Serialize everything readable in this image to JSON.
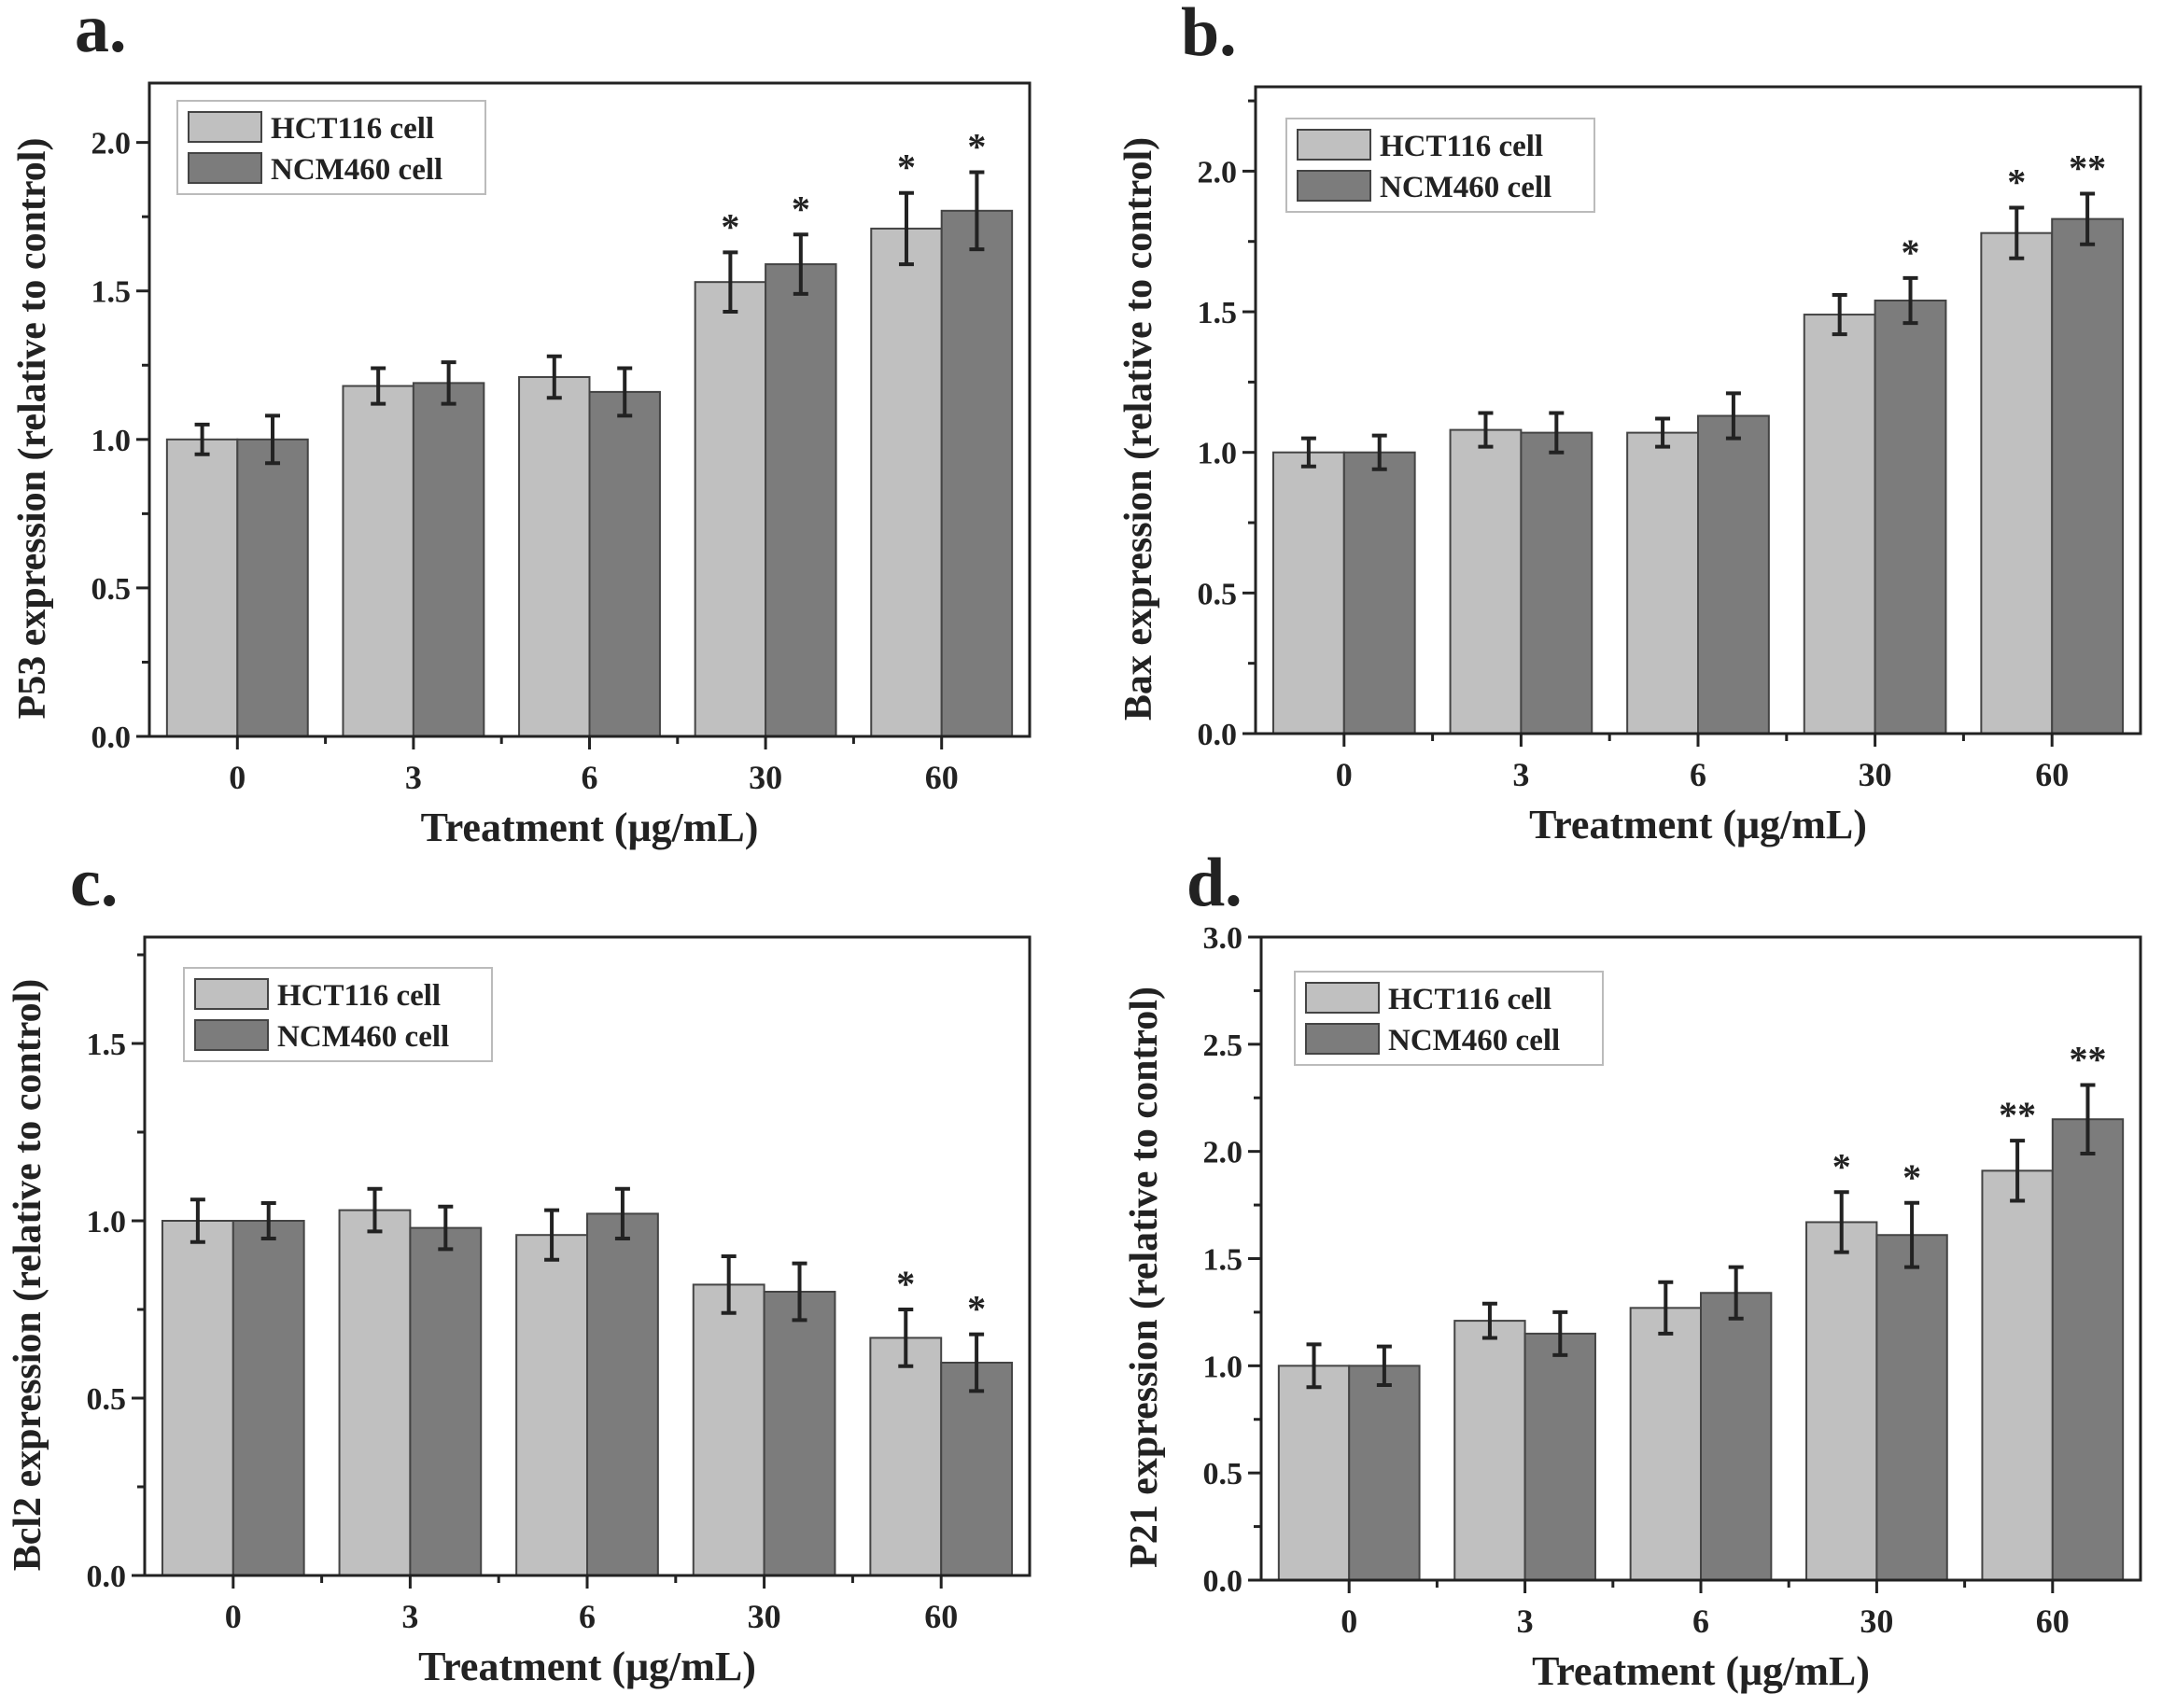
{
  "chart_data": [
    {
      "type": "bar",
      "panel_label": "a.",
      "ylabel": "P53 expression (relative to control)",
      "xlabel": "Treatment (μg/mL)",
      "categories": [
        "0",
        "3",
        "6",
        "30",
        "60"
      ],
      "ylim": [
        0,
        2.2
      ],
      "yticks": [
        "0.0",
        "0.5",
        "1.0",
        "1.5",
        "2.0"
      ],
      "legend_position": "top-left",
      "series": [
        {
          "name": "HCT116 cell",
          "color": "#c0c0c0",
          "values": [
            1.0,
            1.18,
            1.21,
            1.53,
            1.71
          ],
          "errors": [
            0.05,
            0.06,
            0.07,
            0.1,
            0.12
          ],
          "significance": [
            "",
            "",
            "",
            "*",
            "*"
          ]
        },
        {
          "name": "NCM460 cell",
          "color": "#7c7c7c",
          "values": [
            1.0,
            1.19,
            1.16,
            1.59,
            1.77
          ],
          "errors": [
            0.08,
            0.07,
            0.08,
            0.1,
            0.13
          ],
          "significance": [
            "",
            "",
            "",
            "*",
            "*"
          ]
        }
      ]
    },
    {
      "type": "bar",
      "panel_label": "b.",
      "ylabel": "Bax expression (relative to control)",
      "xlabel": "Treatment (μg/mL)",
      "categories": [
        "0",
        "3",
        "6",
        "30",
        "60"
      ],
      "ylim": [
        0,
        2.3
      ],
      "yticks": [
        "0.0",
        "0.5",
        "1.0",
        "1.5",
        "2.0"
      ],
      "legend_position": "top-left",
      "series": [
        {
          "name": "HCT116 cell",
          "color": "#c0c0c0",
          "values": [
            1.0,
            1.08,
            1.07,
            1.49,
            1.78
          ],
          "errors": [
            0.05,
            0.06,
            0.05,
            0.07,
            0.09
          ],
          "significance": [
            "",
            "",
            "",
            "",
            "*"
          ]
        },
        {
          "name": "NCM460 cell",
          "color": "#7c7c7c",
          "values": [
            1.0,
            1.07,
            1.13,
            1.54,
            1.83
          ],
          "errors": [
            0.06,
            0.07,
            0.08,
            0.08,
            0.09
          ],
          "significance": [
            "",
            "",
            "",
            "*",
            "**"
          ]
        }
      ]
    },
    {
      "type": "bar",
      "panel_label": "c.",
      "ylabel": "Bcl2 expression (relative to control)",
      "xlabel": "Treatment (μg/mL)",
      "categories": [
        "0",
        "3",
        "6",
        "30",
        "60"
      ],
      "ylim": [
        0,
        1.8
      ],
      "yticks": [
        "0.0",
        "0.5",
        "1.0",
        "1.5"
      ],
      "legend_position": "top-left",
      "series": [
        {
          "name": "HCT116 cell",
          "color": "#c0c0c0",
          "values": [
            1.0,
            1.03,
            0.96,
            0.82,
            0.67
          ],
          "errors": [
            0.06,
            0.06,
            0.07,
            0.08,
            0.08
          ],
          "significance": [
            "",
            "",
            "",
            "",
            "*"
          ]
        },
        {
          "name": "NCM460 cell",
          "color": "#7c7c7c",
          "values": [
            1.0,
            0.98,
            1.02,
            0.8,
            0.6
          ],
          "errors": [
            0.05,
            0.06,
            0.07,
            0.08,
            0.08
          ],
          "significance": [
            "",
            "",
            "",
            "",
            "*"
          ]
        }
      ]
    },
    {
      "type": "bar",
      "panel_label": "d.",
      "ylabel": "P21 expression (relative to control)",
      "xlabel": "Treatment (μg/mL)",
      "categories": [
        "0",
        "3",
        "6",
        "30",
        "60"
      ],
      "ylim": [
        0,
        3.0
      ],
      "yticks": [
        "0.0",
        "0.5",
        "1.0",
        "1.5",
        "2.0",
        "2.5",
        "3.0"
      ],
      "legend_position": "top-left",
      "series": [
        {
          "name": "HCT116 cell",
          "color": "#c0c0c0",
          "values": [
            1.0,
            1.21,
            1.27,
            1.67,
            1.91
          ],
          "errors": [
            0.1,
            0.08,
            0.12,
            0.14,
            0.14
          ],
          "significance": [
            "",
            "",
            "",
            "*",
            "**"
          ]
        },
        {
          "name": "NCM460 cell",
          "color": "#7c7c7c",
          "values": [
            1.0,
            1.15,
            1.34,
            1.61,
            2.15
          ],
          "errors": [
            0.09,
            0.1,
            0.12,
            0.15,
            0.16
          ],
          "significance": [
            "",
            "",
            "",
            "*",
            "**"
          ]
        }
      ]
    }
  ]
}
